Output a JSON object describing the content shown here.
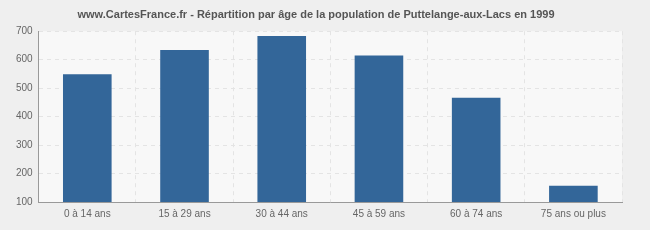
{
  "chart_data": {
    "type": "bar",
    "title": "www.CartesFrance.fr - Répartition par âge de la population de Puttelange-aux-Lacs en 1999",
    "categories": [
      "0 à 14 ans",
      "15 à 29 ans",
      "30 à 44 ans",
      "45 à 59 ans",
      "60 à 74 ans",
      "75 ans ou plus"
    ],
    "values": [
      549,
      634,
      683,
      615,
      466,
      157
    ],
    "color": "#336699",
    "ylim": [
      100,
      700
    ],
    "yticks": [
      100,
      200,
      300,
      400,
      500,
      600,
      700
    ],
    "grid": true
  }
}
